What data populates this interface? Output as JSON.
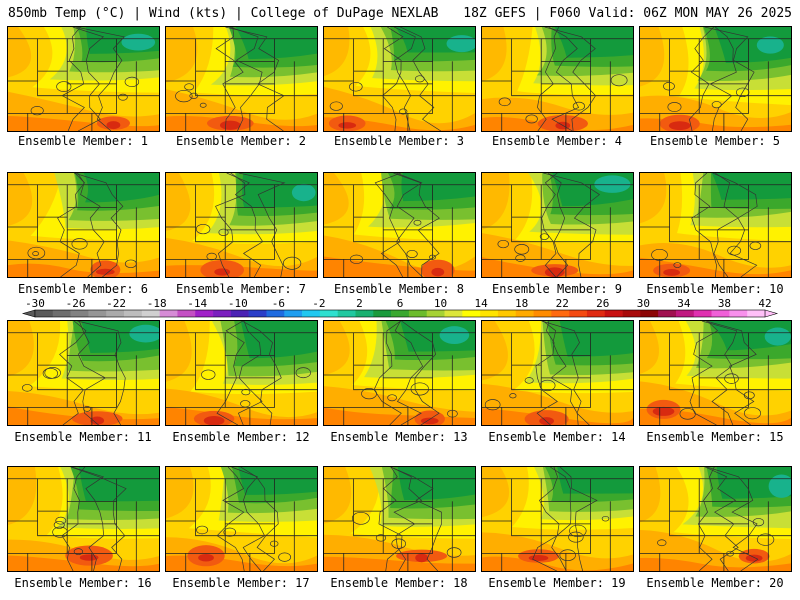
{
  "header": {
    "left": "850mb Temp (°C) | Wind (kts) | College of DuPage NEXLAB",
    "right": "18Z GEFS | F060 Valid: 06Z MON MAY 26 2025"
  },
  "members": [
    "Ensemble Member: 1",
    "Ensemble Member: 2",
    "Ensemble Member: 3",
    "Ensemble Member: 4",
    "Ensemble Member: 5",
    "Ensemble Member: 6",
    "Ensemble Member: 7",
    "Ensemble Member: 8",
    "Ensemble Member: 9",
    "Ensemble Member: 10",
    "Ensemble Member: 11",
    "Ensemble Member: 12",
    "Ensemble Member: 13",
    "Ensemble Member: 14",
    "Ensemble Member: 15",
    "Ensemble Member: 16",
    "Ensemble Member: 17",
    "Ensemble Member: 18",
    "Ensemble Member: 19",
    "Ensemble Member: 20"
  ],
  "colorbar": {
    "ticks": [
      "-30",
      "-26",
      "-22",
      "-18",
      "-14",
      "-10",
      "-6",
      "-2",
      "2",
      "6",
      "10",
      "14",
      "18",
      "22",
      "26",
      "30",
      "34",
      "38",
      "42"
    ],
    "colors": [
      "#5a5a5a",
      "#6e6e6e",
      "#828282",
      "#969696",
      "#aaaaaa",
      "#bdbdbd",
      "#d0d0d0",
      "#d68bd6",
      "#c44fc4",
      "#a020c8",
      "#7b1fbf",
      "#4b22b4",
      "#2a3ec8",
      "#1e6be0",
      "#1e9ef0",
      "#20c8f0",
      "#2ee0d0",
      "#20c8a0",
      "#18b070",
      "#1a9a3c",
      "#3aa830",
      "#6cbc2c",
      "#a6d234",
      "#dce63a",
      "#ffff00",
      "#ffe400",
      "#ffc800",
      "#ffaa00",
      "#ff8c00",
      "#ff6a10",
      "#f44a10",
      "#e02a10",
      "#c81010",
      "#a80a0a",
      "#8c0606",
      "#a01050",
      "#c01880",
      "#e030b0",
      "#f060d8",
      "#f890ec",
      "#ffc0f8"
    ]
  },
  "field_colors": {
    "dark_green": "#139a3c",
    "green": "#3ba82c",
    "light_green": "#79c02f",
    "yellow_green": "#c8df36",
    "yellow": "#fff200",
    "gold": "#ffd200",
    "orange": "#ffae00",
    "deep_orange": "#ff8400",
    "red_orange": "#f25a10",
    "red": "#d82a10",
    "teal": "#18b28c"
  }
}
